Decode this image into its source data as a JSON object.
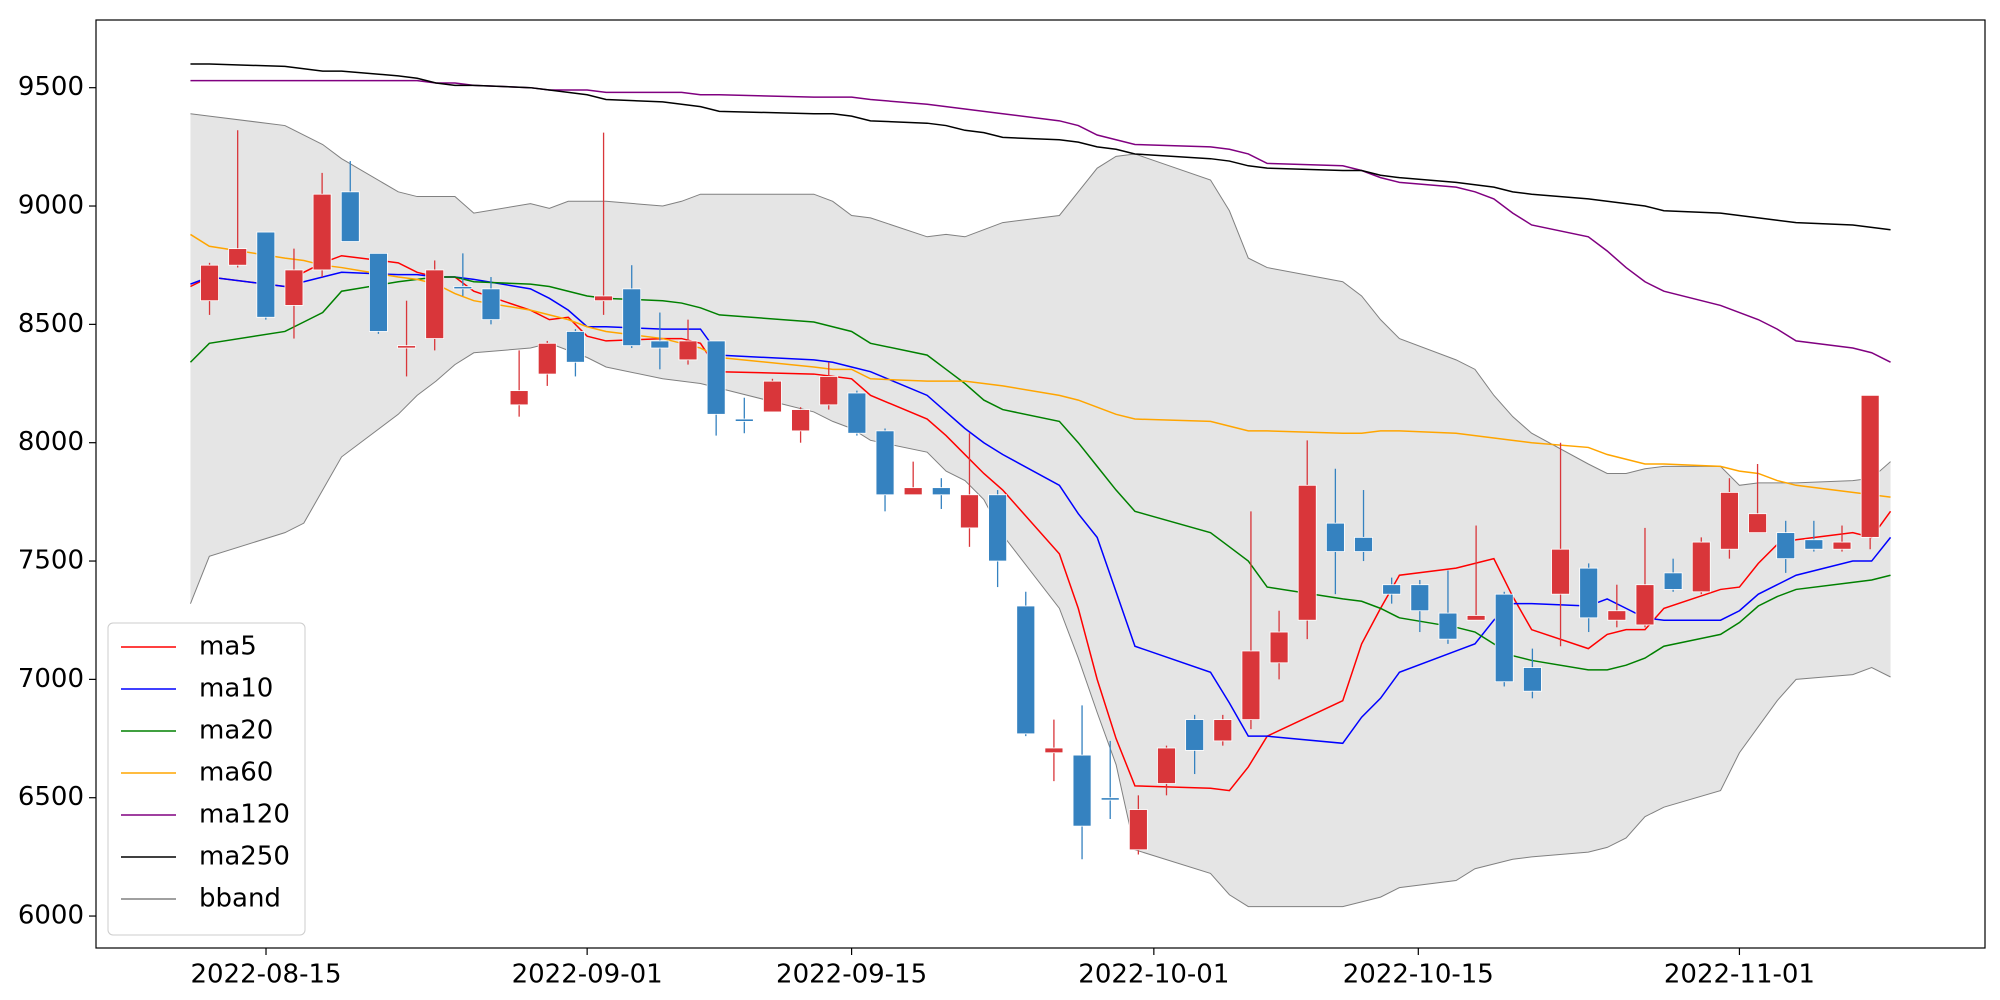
{
  "chart_data": {
    "type": "candlestick",
    "x": [
      "2022-08-11",
      "2022-08-12",
      "2022-08-16",
      "2022-08-17",
      "2022-08-18",
      "2022-08-19",
      "2022-08-22",
      "2022-08-23",
      "2022-08-24",
      "2022-08-25",
      "2022-08-26",
      "2022-08-29",
      "2022-08-30",
      "2022-08-31",
      "2022-09-01",
      "2022-09-02",
      "2022-09-05",
      "2022-09-06",
      "2022-09-07",
      "2022-09-08",
      "2022-09-13",
      "2022-09-14",
      "2022-09-15",
      "2022-09-16",
      "2022-09-19",
      "2022-09-20",
      "2022-09-21",
      "2022-09-22",
      "2022-09-23",
      "2022-09-26",
      "2022-09-27",
      "2022-09-28",
      "2022-09-29",
      "2022-09-30",
      "2022-10-04",
      "2022-10-05",
      "2022-10-06",
      "2022-10-07",
      "2022-10-11",
      "2022-10-12",
      "2022-10-13",
      "2022-10-14",
      "2022-10-17",
      "2022-10-18",
      "2022-10-19",
      "2022-10-20",
      "2022-10-21",
      "2022-10-24",
      "2022-10-25",
      "2022-10-26",
      "2022-10-27",
      "2022-10-28",
      "2022-10-31",
      "2022-11-01",
      "2022-11-02",
      "2022-11-03",
      "2022-11-04",
      "2022-11-07",
      "2022-11-08",
      "2022-11-09"
    ],
    "candles": {
      "up_color": "#d9363a",
      "down_color": "#3582c0",
      "open": [
        8600,
        8750,
        8890,
        8580,
        8730,
        9060,
        8800,
        8400,
        8440,
        8660,
        8650,
        8160,
        8290,
        8470,
        8600,
        8650,
        8430,
        8350,
        8430,
        8100,
        8130,
        8050,
        8160,
        8210,
        8050,
        7780,
        7810,
        7640,
        7780,
        7310,
        6690,
        6680,
        6500,
        6280,
        6560,
        6830,
        6740,
        6830,
        7070,
        7250,
        7660,
        7600,
        7400,
        7400,
        7280,
        7250,
        7360,
        7050,
        7360,
        7470,
        7250,
        7230,
        7450,
        7370,
        7550,
        7620,
        7620,
        7590,
        7550,
        7600
      ],
      "high": [
        8760,
        9320,
        8890,
        8820,
        9140,
        9190,
        8800,
        8600,
        8770,
        8800,
        8700,
        8390,
        8430,
        8480,
        9310,
        8750,
        8550,
        8520,
        8430,
        8190,
        8270,
        8150,
        8340,
        8220,
        8060,
        7920,
        7850,
        8040,
        7800,
        7370,
        6830,
        6890,
        6740,
        6510,
        6720,
        6850,
        6850,
        7710,
        7290,
        8010,
        7890,
        7800,
        7430,
        7420,
        7460,
        7650,
        7370,
        7130,
        8000,
        7490,
        7400,
        7640,
        7510,
        7600,
        7850,
        7910,
        7670,
        7670,
        7650,
        8200
      ],
      "low": [
        8540,
        8740,
        8520,
        8440,
        8700,
        8850,
        8460,
        8280,
        8390,
        8620,
        8500,
        8110,
        8240,
        8280,
        8540,
        8400,
        8310,
        8330,
        8030,
        8040,
        8130,
        8000,
        8140,
        8030,
        7710,
        7780,
        7720,
        7560,
        7390,
        6760,
        6570,
        6240,
        6410,
        6260,
        6510,
        6600,
        6720,
        6790,
        7000,
        7170,
        7360,
        7500,
        7320,
        7200,
        7150,
        7250,
        6970,
        6920,
        7140,
        7200,
        7220,
        7220,
        7370,
        7360,
        7510,
        7620,
        7450,
        7540,
        7540,
        7550
      ],
      "close": [
        8750,
        8820,
        8530,
        8730,
        9050,
        8850,
        8470,
        8410,
        8730,
        8650,
        8520,
        8220,
        8420,
        8340,
        8620,
        8410,
        8400,
        8430,
        8120,
        8090,
        8260,
        8140,
        8280,
        8040,
        7780,
        7810,
        7780,
        7780,
        7500,
        6770,
        6710,
        6380,
        6490,
        6450,
        6710,
        6700,
        6830,
        7120,
        7200,
        7820,
        7540,
        7540,
        7360,
        7290,
        7170,
        7270,
        6990,
        6950,
        7550,
        7260,
        7290,
        7400,
        7380,
        7580,
        7790,
        7700,
        7510,
        7550,
        7580,
        8200
      ]
    },
    "series": [
      {
        "name": "ma5",
        "color": "#ff0000",
        "values": [
          8660,
          8700,
          8660,
          8720,
          8760,
          8790,
          8760,
          8720,
          8700,
          8700,
          8640,
          8560,
          8520,
          8530,
          8450,
          8430,
          8440,
          8440,
          8420,
          8300,
          8290,
          8280,
          8270,
          8200,
          8100,
          8030,
          7950,
          7870,
          7800,
          7530,
          7300,
          7000,
          6750,
          6550,
          6540,
          6530,
          6630,
          6760,
          6910,
          7150,
          7300,
          7440,
          7470,
          7490,
          7510,
          7350,
          7210,
          7130,
          7190,
          7210,
          7210,
          7300,
          7380,
          7390,
          7490,
          7570,
          7590,
          7620,
          7600,
          7710
        ]
      },
      {
        "name": "ma10",
        "color": "#0000ff",
        "values": [
          8670,
          8700,
          8660,
          8680,
          8700,
          8720,
          8710,
          8710,
          8700,
          8700,
          8690,
          8650,
          8610,
          8560,
          8490,
          8490,
          8480,
          8480,
          8480,
          8370,
          8350,
          8340,
          8320,
          8300,
          8200,
          8130,
          8060,
          8000,
          7950,
          7820,
          7700,
          7600,
          7370,
          7140,
          7030,
          6900,
          6760,
          6760,
          6730,
          6840,
          6920,
          7030,
          7120,
          7150,
          7250,
          7320,
          7320,
          7310,
          7340,
          7300,
          7260,
          7250,
          7250,
          7290,
          7360,
          7400,
          7440,
          7500,
          7500,
          7600
        ]
      },
      {
        "name": "ma20",
        "color": "#008000",
        "values": [
          8340,
          8420,
          8470,
          8510,
          8550,
          8640,
          8680,
          8690,
          8700,
          8700,
          8680,
          8670,
          8660,
          8640,
          8620,
          8610,
          8600,
          8590,
          8570,
          8540,
          8510,
          8490,
          8470,
          8420,
          8370,
          8310,
          8250,
          8180,
          8140,
          8090,
          8000,
          7900,
          7800,
          7710,
          7620,
          7560,
          7500,
          7390,
          7340,
          7330,
          7300,
          7260,
          7220,
          7200,
          7150,
          7100,
          7080,
          7040,
          7040,
          7060,
          7090,
          7140,
          7190,
          7240,
          7310,
          7350,
          7380,
          7410,
          7420,
          7440
        ]
      },
      {
        "name": "ma60",
        "color": "#ffa500",
        "values": [
          8880,
          8830,
          8780,
          8770,
          8750,
          8740,
          8700,
          8690,
          8670,
          8630,
          8600,
          8560,
          8540,
          8520,
          8490,
          8470,
          8440,
          8420,
          8400,
          8360,
          8320,
          8310,
          8310,
          8270,
          8260,
          8260,
          8260,
          8250,
          8240,
          8200,
          8180,
          8150,
          8120,
          8100,
          8090,
          8070,
          8050,
          8050,
          8040,
          8040,
          8050,
          8050,
          8040,
          8030,
          8020,
          8010,
          8000,
          7980,
          7950,
          7930,
          7910,
          7910,
          7900,
          7880,
          7870,
          7840,
          7820,
          7790,
          7780,
          7770
        ]
      },
      {
        "name": "ma120",
        "color": "#800080",
        "values": [
          9530,
          9530,
          9530,
          9530,
          9530,
          9530,
          9530,
          9530,
          9520,
          9520,
          9510,
          9500,
          9490,
          9490,
          9490,
          9480,
          9480,
          9480,
          9470,
          9470,
          9460,
          9460,
          9460,
          9450,
          9430,
          9420,
          9410,
          9400,
          9390,
          9360,
          9340,
          9300,
          9280,
          9260,
          9250,
          9240,
          9220,
          9180,
          9170,
          9150,
          9120,
          9100,
          9080,
          9060,
          9030,
          8970,
          8920,
          8870,
          8810,
          8740,
          8680,
          8640,
          8580,
          8550,
          8520,
          8480,
          8430,
          8400,
          8380,
          8340
        ]
      },
      {
        "name": "ma250",
        "color": "#000000",
        "values": [
          9600,
          9600,
          9590,
          9580,
          9570,
          9570,
          9550,
          9540,
          9520,
          9510,
          9510,
          9500,
          9490,
          9480,
          9470,
          9450,
          9440,
          9430,
          9420,
          9400,
          9390,
          9390,
          9380,
          9360,
          9350,
          9340,
          9320,
          9310,
          9290,
          9280,
          9270,
          9250,
          9240,
          9220,
          9200,
          9190,
          9170,
          9160,
          9150,
          9150,
          9130,
          9120,
          9100,
          9090,
          9080,
          9060,
          9050,
          9030,
          9020,
          9010,
          9000,
          8980,
          8970,
          8960,
          8950,
          8940,
          8930,
          8920,
          8910,
          8900
        ]
      }
    ],
    "band": {
      "name": "bband",
      "color": "#808080",
      "fill": "#e5e5e5",
      "upper": [
        9390,
        9380,
        9340,
        9300,
        9260,
        9200,
        9060,
        9040,
        9040,
        9040,
        8970,
        9010,
        8990,
        9020,
        9020,
        9020,
        9000,
        9020,
        9050,
        9050,
        9050,
        9020,
        8960,
        8950,
        8870,
        8880,
        8870,
        8900,
        8930,
        8960,
        9060,
        9160,
        9210,
        9220,
        9110,
        8980,
        8780,
        8740,
        8680,
        8620,
        8520,
        8440,
        8350,
        8310,
        8200,
        8110,
        8040,
        7910,
        7870,
        7870,
        7890,
        7900,
        7900,
        7820,
        7830,
        7830,
        7830,
        7840,
        7850,
        7920
      ],
      "lower": [
        7320,
        7520,
        7620,
        7660,
        7800,
        7940,
        8120,
        8200,
        8260,
        8330,
        8380,
        8400,
        8420,
        8390,
        8360,
        8320,
        8270,
        8260,
        8250,
        8230,
        8130,
        8090,
        8060,
        8010,
        7960,
        7880,
        7840,
        7760,
        7610,
        7300,
        7090,
        6860,
        6640,
        6280,
        6180,
        6090,
        6040,
        6040,
        6040,
        6060,
        6080,
        6120,
        6150,
        6200,
        6220,
        6240,
        6250,
        6270,
        6290,
        6330,
        6420,
        6460,
        6530,
        6690,
        6800,
        6910,
        7000,
        7020,
        7050,
        7010
      ]
    },
    "xlim": [
      "2022-08-06",
      "2022-11-14"
    ],
    "xticks": [
      "2022-08-15",
      "2022-09-01",
      "2022-09-15",
      "2022-10-01",
      "2022-10-15",
      "2022-11-01"
    ],
    "ylim": [
      5865,
      9786
    ],
    "yticks": [
      6000,
      6500,
      7000,
      7500,
      8000,
      8500,
      9000,
      9500
    ],
    "legend": "lower left"
  }
}
